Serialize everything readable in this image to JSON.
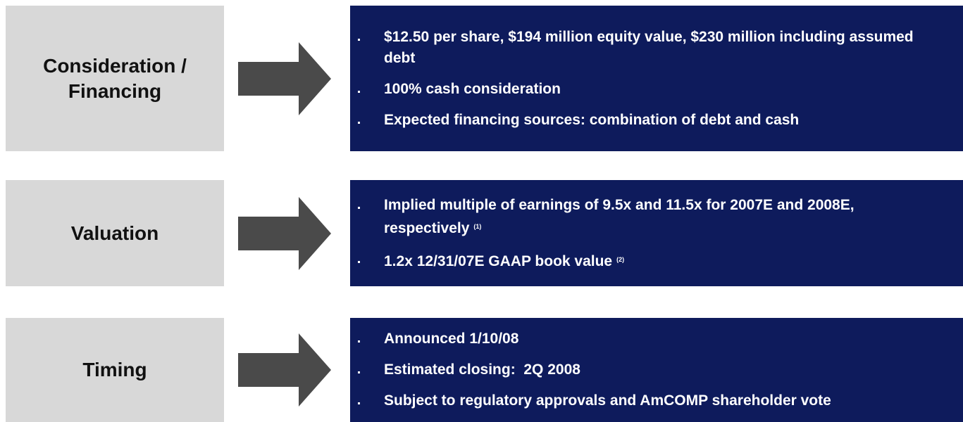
{
  "rows": [
    {
      "label": "Consideration / Financing",
      "items": [
        {
          "text": "$12.50 per share, $194 million equity value, $230 million including assumed debt"
        },
        {
          "text": "100% cash consideration"
        },
        {
          "text": "Expected financing sources: combination of debt and cash"
        }
      ]
    },
    {
      "label": "Valuation",
      "items": [
        {
          "text": "Implied multiple of earnings of 9.5x and 11.5x for 2007E and 2008E, respectively",
          "note": "(1)"
        },
        {
          "text": "1.2x 12/31/07E GAAP book value",
          "note": "(2)"
        }
      ]
    },
    {
      "label": "Timing",
      "items": [
        {
          "text": "Announced 1/10/08"
        },
        {
          "text": "Estimated closing:  2Q 2008"
        },
        {
          "text": "Subject to regulatory approvals and AmCOMP shareholder vote"
        }
      ]
    }
  ]
}
